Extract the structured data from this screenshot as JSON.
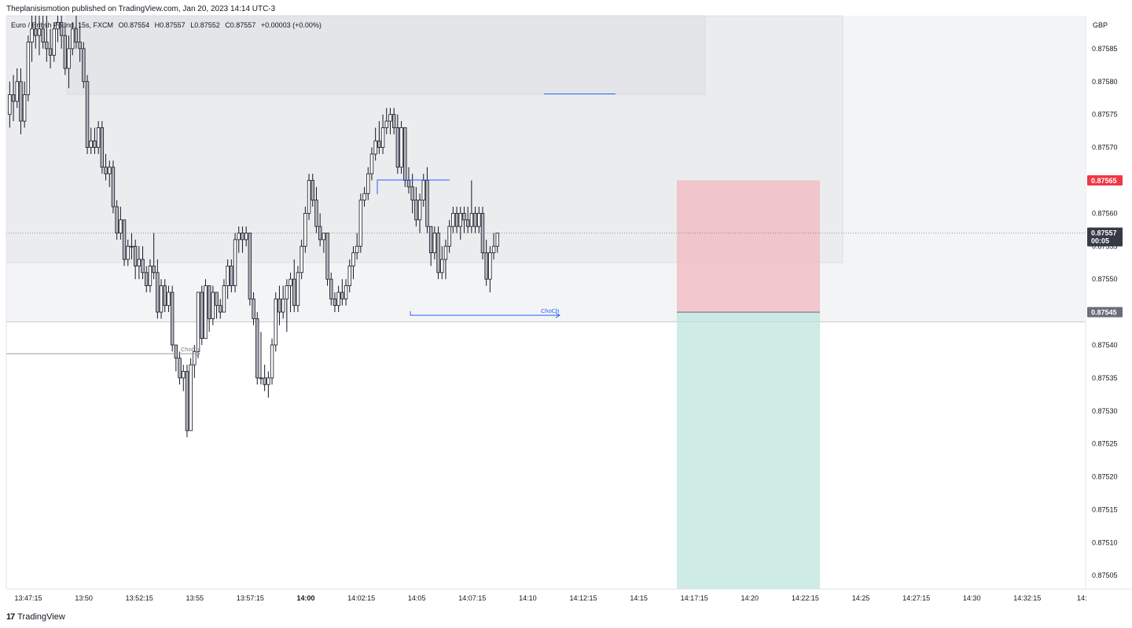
{
  "publish_line": "Theplanisismotion published on TradingView.com, Jan 20, 2023 14:14 UTC-3",
  "legend": {
    "symbol": "Euro / British Pound, 15s, FXCM",
    "open": "O0.87554",
    "high": "H0.87557",
    "low": "L0.87552",
    "close": "C0.87557",
    "change": "+0.00003 (+0.00%)"
  },
  "footer": {
    "logo_mark": "17",
    "brand": "TradingView"
  },
  "colors": {
    "candle_body": "#b2b5be",
    "candle_border": "#131722",
    "zone_fill": "#e9eaec",
    "stop_fill": "#f2b8bf",
    "target_fill": "#b9e3da",
    "annotation_blue": "#2962ff",
    "annotation_gray": "#9598a1",
    "price_label_red": "#f23645",
    "price_label_dark": "#363a45",
    "price_label_gray": "#6a6d78"
  },
  "chart_data": {
    "type": "candlestick",
    "currency_label": "GBP",
    "ylim": [
      0.87503,
      0.8759
    ],
    "y_ticks": [
      "0.87585",
      "0.87580",
      "0.87575",
      "0.87570",
      "0.87565",
      "0.87560",
      "0.87555",
      "0.87550",
      "0.87545",
      "0.87540",
      "0.87535",
      "0.87530",
      "0.87525",
      "0.87520",
      "0.87515",
      "0.87510",
      "0.87505"
    ],
    "x_tick_labels": [
      "13:47:15",
      "13:50",
      "13:52:15",
      "13:55",
      "13:57:15",
      "14:00",
      "14:02:15",
      "14:05",
      "14:07:15",
      "14:10",
      "14:12:15",
      "14:15",
      "14:17:15",
      "14:20",
      "14:22:15",
      "14:25",
      "14:27:15",
      "14:30",
      "14:32:15",
      "14:"
    ],
    "x_tick_bold": "14:00",
    "bar_interval_seconds": 15,
    "price_labels": [
      {
        "value": "0.87565",
        "style": "red"
      },
      {
        "value": "0.87557",
        "sub": "00:05",
        "style": "dark"
      },
      {
        "value": "0.87545",
        "style": "gray"
      }
    ],
    "last_price": 0.87557,
    "annotations": [
      {
        "text": "ChoCh",
        "color": "gray",
        "level": 0.8754
      },
      {
        "text": "ChoCh",
        "color": "blue",
        "level": 0.87545
      }
    ],
    "position": {
      "entry": 0.87545,
      "stop": 0.87565,
      "target": 0.87503
    },
    "candles": [
      [
        0.87575,
        0.8758,
        0.87573,
        0.87578
      ],
      [
        0.87578,
        0.87581,
        0.87574,
        0.87577
      ],
      [
        0.87577,
        0.87582,
        0.87576,
        0.8758
      ],
      [
        0.8758,
        0.87582,
        0.87572,
        0.87574
      ],
      [
        0.87574,
        0.8758,
        0.87573,
        0.87578
      ],
      [
        0.87578,
        0.87587,
        0.87577,
        0.87586
      ],
      [
        0.87586,
        0.8759,
        0.87583,
        0.87588
      ],
      [
        0.87588,
        0.8759,
        0.87585,
        0.87587
      ],
      [
        0.87587,
        0.8759,
        0.87584,
        0.87588
      ],
      [
        0.87588,
        0.8759,
        0.87585,
        0.87586
      ],
      [
        0.87586,
        0.8759,
        0.87583,
        0.87585
      ],
      [
        0.87585,
        0.87588,
        0.87582,
        0.87584
      ],
      [
        0.87584,
        0.87589,
        0.87583,
        0.87588
      ],
      [
        0.87588,
        0.8759,
        0.87586,
        0.87589
      ],
      [
        0.87589,
        0.8759,
        0.87585,
        0.87587
      ],
      [
        0.87587,
        0.87589,
        0.87581,
        0.87582
      ],
      [
        0.87582,
        0.87587,
        0.87579,
        0.87585
      ],
      [
        0.87585,
        0.87589,
        0.87584,
        0.87588
      ],
      [
        0.87588,
        0.8759,
        0.87585,
        0.87586
      ],
      [
        0.87586,
        0.87589,
        0.87583,
        0.87585
      ],
      [
        0.87585,
        0.87586,
        0.87579,
        0.8758
      ],
      [
        0.8758,
        0.87581,
        0.87569,
        0.8757
      ],
      [
        0.8757,
        0.87573,
        0.87569,
        0.87571
      ],
      [
        0.87571,
        0.87573,
        0.87569,
        0.8757
      ],
      [
        0.8757,
        0.87574,
        0.87569,
        0.87573
      ],
      [
        0.87573,
        0.87574,
        0.87566,
        0.87567
      ],
      [
        0.87567,
        0.87569,
        0.87565,
        0.87566
      ],
      [
        0.87566,
        0.87568,
        0.87564,
        0.87567
      ],
      [
        0.87567,
        0.87568,
        0.8756,
        0.87561
      ],
      [
        0.87561,
        0.87562,
        0.87556,
        0.87557
      ],
      [
        0.87557,
        0.87561,
        0.87556,
        0.87559
      ],
      [
        0.87559,
        0.87559,
        0.87552,
        0.87553
      ],
      [
        0.87553,
        0.87556,
        0.87552,
        0.87555
      ],
      [
        0.87555,
        0.87557,
        0.87553,
        0.87555
      ],
      [
        0.87555,
        0.87556,
        0.8755,
        0.87552
      ],
      [
        0.87552,
        0.87555,
        0.8755,
        0.87553
      ],
      [
        0.87553,
        0.87555,
        0.8755,
        0.87551
      ],
      [
        0.87551,
        0.87552,
        0.87548,
        0.87549
      ],
      [
        0.87549,
        0.87553,
        0.87548,
        0.87552
      ],
      [
        0.87552,
        0.87557,
        0.8755,
        0.87551
      ],
      [
        0.87551,
        0.87553,
        0.87544,
        0.87545
      ],
      [
        0.87545,
        0.8755,
        0.87544,
        0.87549
      ],
      [
        0.87549,
        0.8755,
        0.87545,
        0.87546
      ],
      [
        0.87546,
        0.87549,
        0.87545,
        0.87548
      ],
      [
        0.87548,
        0.87549,
        0.87539,
        0.8754
      ],
      [
        0.8754,
        0.8754,
        0.87536,
        0.87538
      ],
      [
        0.87538,
        0.87539,
        0.87534,
        0.87535
      ],
      [
        0.87535,
        0.87537,
        0.87533,
        0.87536
      ],
      [
        0.87536,
        0.87537,
        0.87526,
        0.87527
      ],
      [
        0.87527,
        0.87538,
        0.87527,
        0.87537
      ],
      [
        0.87537,
        0.8754,
        0.87535,
        0.87539
      ],
      [
        0.87539,
        0.87548,
        0.87538,
        0.87548
      ],
      [
        0.87548,
        0.87549,
        0.8754,
        0.87541
      ],
      [
        0.87541,
        0.8755,
        0.87541,
        0.87549
      ],
      [
        0.87549,
        0.87549,
        0.87542,
        0.87544
      ],
      [
        0.87544,
        0.87549,
        0.87543,
        0.87548
      ],
      [
        0.87548,
        0.87548,
        0.87544,
        0.87546
      ],
      [
        0.87546,
        0.87547,
        0.87544,
        0.87545
      ],
      [
        0.87545,
        0.8755,
        0.87545,
        0.87549
      ],
      [
        0.87549,
        0.87553,
        0.87547,
        0.87552
      ],
      [
        0.87552,
        0.87553,
        0.87548,
        0.87549
      ],
      [
        0.87549,
        0.87557,
        0.87548,
        0.87556
      ],
      [
        0.87556,
        0.87558,
        0.87554,
        0.87557
      ],
      [
        0.87557,
        0.87558,
        0.87554,
        0.87556
      ],
      [
        0.87556,
        0.87558,
        0.87555,
        0.87557
      ],
      [
        0.87557,
        0.87557,
        0.87546,
        0.87547
      ],
      [
        0.87547,
        0.87548,
        0.87543,
        0.87544
      ],
      [
        0.87544,
        0.87545,
        0.87534,
        0.87535
      ],
      [
        0.87535,
        0.87542,
        0.87534,
        0.87535
      ],
      [
        0.87535,
        0.87537,
        0.87533,
        0.87534
      ],
      [
        0.87534,
        0.87536,
        0.87532,
        0.87535
      ],
      [
        0.87535,
        0.87541,
        0.87534,
        0.8754
      ],
      [
        0.8754,
        0.87548,
        0.87539,
        0.87547
      ],
      [
        0.87547,
        0.87549,
        0.87543,
        0.87545
      ],
      [
        0.87545,
        0.87549,
        0.87544,
        0.87547
      ],
      [
        0.87547,
        0.8755,
        0.87542,
        0.87549
      ],
      [
        0.87549,
        0.87551,
        0.87545,
        0.8755
      ],
      [
        0.8755,
        0.87553,
        0.87545,
        0.87546
      ],
      [
        0.87546,
        0.87552,
        0.87545,
        0.87551
      ],
      [
        0.87551,
        0.87556,
        0.8755,
        0.87555
      ],
      [
        0.87555,
        0.87561,
        0.87554,
        0.8756
      ],
      [
        0.8756,
        0.87566,
        0.87559,
        0.87565
      ],
      [
        0.87565,
        0.87566,
        0.87561,
        0.87562
      ],
      [
        0.87562,
        0.87564,
        0.87557,
        0.87558
      ],
      [
        0.87558,
        0.8756,
        0.87555,
        0.87556
      ],
      [
        0.87556,
        0.87557,
        0.87554,
        0.87557
      ],
      [
        0.87557,
        0.87557,
        0.87549,
        0.8755
      ],
      [
        0.8755,
        0.87551,
        0.87546,
        0.87547
      ],
      [
        0.87547,
        0.87548,
        0.87545,
        0.87546
      ],
      [
        0.87546,
        0.87549,
        0.87545,
        0.87548
      ],
      [
        0.87548,
        0.8755,
        0.87546,
        0.87547
      ],
      [
        0.87547,
        0.8755,
        0.87546,
        0.87549
      ],
      [
        0.87549,
        0.87553,
        0.87548,
        0.87552
      ],
      [
        0.87552,
        0.87555,
        0.8755,
        0.87554
      ],
      [
        0.87554,
        0.87557,
        0.87553,
        0.87555
      ],
      [
        0.87555,
        0.87563,
        0.87554,
        0.87562
      ],
      [
        0.87562,
        0.87564,
        0.87561,
        0.87563
      ],
      [
        0.87563,
        0.87567,
        0.87562,
        0.87566
      ],
      [
        0.87566,
        0.8757,
        0.87565,
        0.87569
      ],
      [
        0.87569,
        0.87573,
        0.87568,
        0.87571
      ],
      [
        0.87571,
        0.87574,
        0.87569,
        0.8757
      ],
      [
        0.8757,
        0.87575,
        0.87569,
        0.87573
      ],
      [
        0.87573,
        0.87576,
        0.87572,
        0.87574
      ],
      [
        0.87574,
        0.87576,
        0.87572,
        0.87575
      ],
      [
        0.87575,
        0.87576,
        0.87572,
        0.87573
      ],
      [
        0.87573,
        0.87575,
        0.87566,
        0.87567
      ],
      [
        0.87567,
        0.87574,
        0.87566,
        0.87573
      ],
      [
        0.87573,
        0.87573,
        0.87564,
        0.87565
      ],
      [
        0.87565,
        0.87567,
        0.87563,
        0.87564
      ],
      [
        0.87564,
        0.87566,
        0.8756,
        0.87562
      ],
      [
        0.87562,
        0.87564,
        0.87558,
        0.87559
      ],
      [
        0.87559,
        0.87563,
        0.87557,
        0.87562
      ],
      [
        0.87562,
        0.87566,
        0.87561,
        0.87565
      ],
      [
        0.87565,
        0.87567,
        0.87557,
        0.87558
      ],
      [
        0.87558,
        0.87558,
        0.87552,
        0.87554
      ],
      [
        0.87554,
        0.87558,
        0.87553,
        0.87557
      ],
      [
        0.87557,
        0.87558,
        0.8755,
        0.87551
      ],
      [
        0.87551,
        0.87555,
        0.8755,
        0.87553
      ],
      [
        0.87553,
        0.87556,
        0.8755,
        0.87555
      ],
      [
        0.87555,
        0.87559,
        0.87554,
        0.87558
      ],
      [
        0.87558,
        0.87561,
        0.87557,
        0.8756
      ],
      [
        0.8756,
        0.87561,
        0.87557,
        0.87558
      ],
      [
        0.87558,
        0.87561,
        0.87556,
        0.8756
      ],
      [
        0.8756,
        0.87561,
        0.87557,
        0.87559
      ],
      [
        0.87559,
        0.87561,
        0.87557,
        0.87558
      ],
      [
        0.87558,
        0.87565,
        0.87557,
        0.8756
      ],
      [
        0.8756,
        0.87561,
        0.87557,
        0.87558
      ],
      [
        0.87558,
        0.87561,
        0.87557,
        0.8756
      ],
      [
        0.8756,
        0.87561,
        0.87553,
        0.87554
      ],
      [
        0.87554,
        0.87556,
        0.87549,
        0.8755
      ],
      [
        0.8755,
        0.87555,
        0.87548,
        0.87554
      ],
      [
        0.87554,
        0.87557,
        0.87553,
        0.87555
      ],
      [
        0.87555,
        0.87557,
        0.87554,
        0.87557
      ]
    ]
  }
}
